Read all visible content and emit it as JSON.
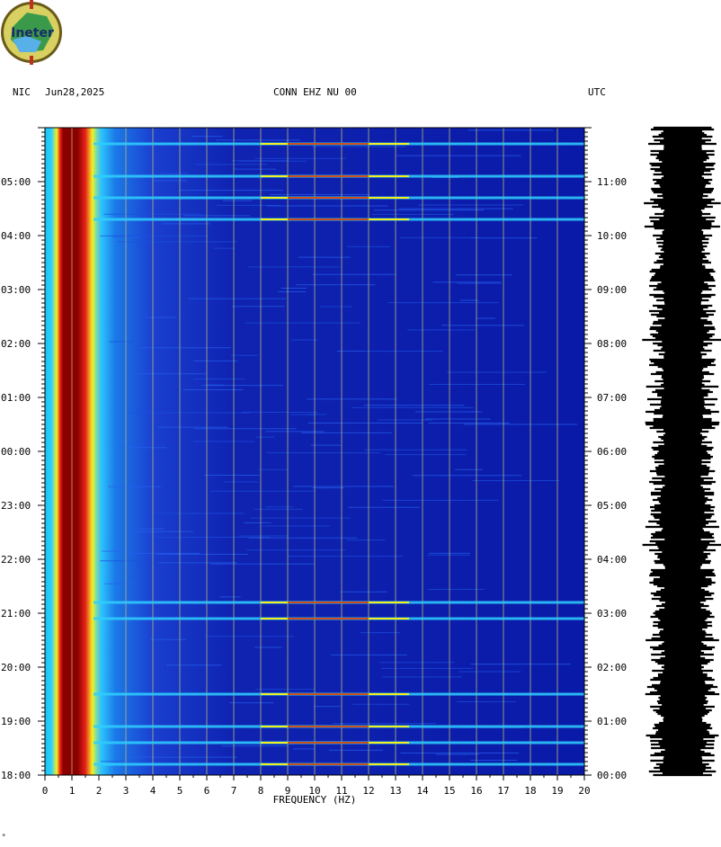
{
  "logo": {
    "text": "Ineter"
  },
  "header": {
    "network": "NIC",
    "date": "Jun28,2025",
    "channel": "CONN EHZ NU 00",
    "timezone": "UTC"
  },
  "corner_mark": "*",
  "colors": {
    "background_blue": "#0a1aa8",
    "mid_blue": "#1b4fe0",
    "cyan": "#2fd0ff",
    "yellow": "#f3f020",
    "red": "#e8221a",
    "dark_red": "#8a0000",
    "grid_line": "#b8b870",
    "trace": "#000000"
  },
  "chart_data": {
    "type": "heatmap",
    "title": "CONN EHZ NU 00",
    "xlabel": "FREQUENCY (HZ)",
    "xlim": [
      0,
      20
    ],
    "x_ticks": [
      "0",
      "1",
      "2",
      "3",
      "4",
      "5",
      "6",
      "7",
      "8",
      "9",
      "10",
      "11",
      "12",
      "13",
      "14",
      "15",
      "16",
      "17",
      "18",
      "19",
      "20"
    ],
    "left_time_labels": [
      "05:00",
      "04:00",
      "03:00",
      "02:00",
      "01:00",
      "00:00",
      "23:00",
      "22:00",
      "21:00",
      "20:00",
      "19:00",
      "18:00"
    ],
    "right_time_labels": [
      "11:00",
      "10:00",
      "09:00",
      "08:00",
      "07:00",
      "06:00",
      "05:00",
      "04:00",
      "03:00",
      "02:00",
      "01:00",
      "00:00"
    ],
    "time_span_hours": 12,
    "dominant_energy_band_hz": [
      0.4,
      2.0
    ],
    "strong_event_lines_hours_from_bottom": [
      11.7,
      11.1,
      10.7,
      10.3,
      3.2,
      2.9,
      1.5,
      0.9,
      0.6,
      0.2
    ]
  }
}
